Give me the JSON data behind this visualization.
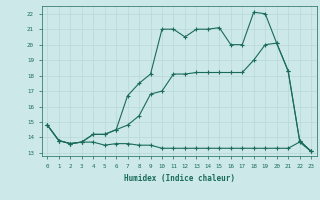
{
  "xlabel": "Humidex (Indice chaleur)",
  "bg_color": "#cce8e8",
  "line_color": "#1a6b5a",
  "grid_color": "#b8d8d8",
  "xlim": [
    -0.5,
    23.5
  ],
  "ylim": [
    12.8,
    22.5
  ],
  "yticks": [
    13,
    14,
    15,
    16,
    17,
    18,
    19,
    20,
    21,
    22
  ],
  "xticks": [
    0,
    1,
    2,
    3,
    4,
    5,
    6,
    7,
    8,
    9,
    10,
    11,
    12,
    13,
    14,
    15,
    16,
    17,
    18,
    19,
    20,
    21,
    22,
    23
  ],
  "line1_x": [
    0,
    1,
    2,
    3,
    4,
    5,
    6,
    7,
    8,
    9,
    10,
    11,
    12,
    13,
    14,
    15,
    16,
    17,
    18,
    19,
    20,
    21,
    22,
    23
  ],
  "line1_y": [
    14.8,
    13.8,
    13.6,
    13.7,
    13.7,
    13.5,
    13.6,
    13.6,
    13.5,
    13.5,
    13.3,
    13.3,
    13.3,
    13.3,
    13.3,
    13.3,
    13.3,
    13.3,
    13.3,
    13.3,
    13.3,
    13.3,
    13.7,
    13.1
  ],
  "line2_x": [
    0,
    1,
    2,
    3,
    4,
    5,
    6,
    7,
    8,
    9,
    10,
    11,
    12,
    13,
    14,
    15,
    16,
    17,
    18,
    19,
    20,
    21,
    22,
    23
  ],
  "line2_y": [
    14.8,
    13.8,
    13.6,
    13.7,
    14.2,
    14.2,
    14.5,
    14.8,
    15.4,
    16.8,
    17.0,
    18.1,
    18.1,
    18.2,
    18.2,
    18.2,
    18.2,
    18.2,
    19.0,
    20.0,
    20.1,
    18.3,
    13.8,
    13.1
  ],
  "line3_x": [
    0,
    1,
    2,
    3,
    4,
    5,
    6,
    7,
    8,
    9,
    10,
    11,
    12,
    13,
    14,
    15,
    16,
    17,
    18,
    19,
    20,
    21,
    22,
    23
  ],
  "line3_y": [
    14.8,
    13.8,
    13.6,
    13.7,
    14.2,
    14.2,
    14.5,
    16.7,
    17.5,
    18.1,
    21.0,
    21.0,
    20.5,
    21.0,
    21.0,
    21.1,
    20.0,
    20.0,
    22.1,
    22.0,
    20.1,
    18.3,
    13.8,
    13.1
  ]
}
